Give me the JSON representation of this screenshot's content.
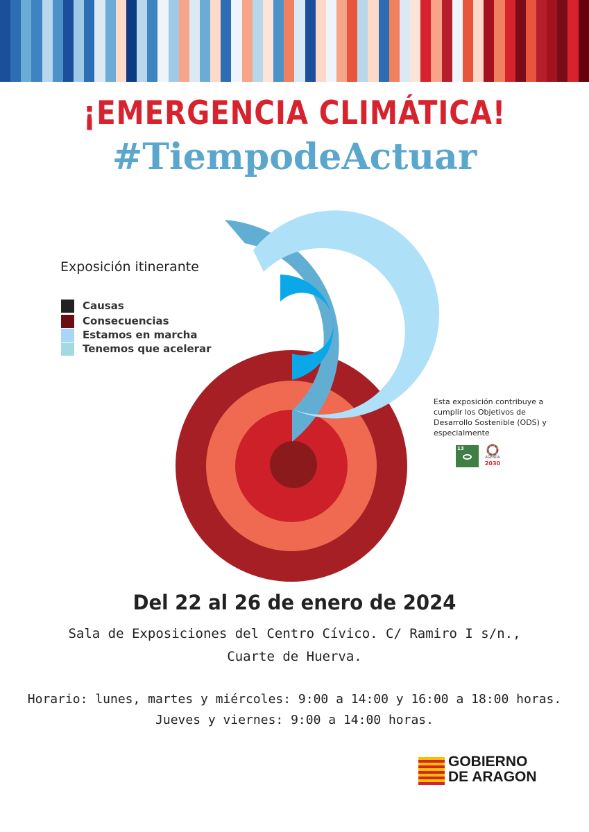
{
  "stripes": [
    "#1b4f9c",
    "#2c6db3",
    "#6aacd6",
    "#3f84c2",
    "#b8d7ec",
    "#4c92c9",
    "#1b4f9c",
    "#9fcae6",
    "#2c6db3",
    "#dbe9f5",
    "#6aacd6",
    "#fcd9c8",
    "#0c3b84",
    "#b8d7ec",
    "#3f84c2",
    "#eef4fa",
    "#9fcae6",
    "#f7a488",
    "#dbe9f5",
    "#6aacd6",
    "#fcd9c8",
    "#2c6db3",
    "#eef4fa",
    "#f7a488",
    "#b8d7ec",
    "#fce4d8",
    "#4c92c9",
    "#f08160",
    "#dbe9f5",
    "#1b4f9c",
    "#fcd9c8",
    "#eef4fa",
    "#f7a488",
    "#e8553c",
    "#b8d7ec",
    "#fcd9c8",
    "#2c6db3",
    "#f08160",
    "#dbe9f5",
    "#fce4d8",
    "#d6232d",
    "#f7a488",
    "#b61e2b",
    "#eef4fa",
    "#e8553c",
    "#fcd9c8",
    "#a3131f",
    "#f08160",
    "#d6232d",
    "#7a0c17",
    "#e8553c",
    "#b61e2b",
    "#a3131f",
    "#7a0c17",
    "#d6232d",
    "#67000d"
  ],
  "title_main": "¡EMERGENCIA CLIMÁTICA!",
  "title_hashtag": "#TiempodeActuar",
  "exhibition": "Exposición itinerante",
  "legend": [
    {
      "label": "Causas",
      "color": "#222222"
    },
    {
      "label": "Consecuencias",
      "color": "#6b0e12"
    },
    {
      "label": "Estamos en marcha",
      "color": "#a9d6f5"
    },
    {
      "label": "Tenemos que acelerar",
      "color": "#a3d9e1"
    }
  ],
  "emblem_colors": {
    "outer_red": "#a51f24",
    "coral": "#ef6a50",
    "red": "#ce2028",
    "center": "#8b1a1d",
    "blue_outer": "#62aed3",
    "blue_light": "#aee0f8",
    "blue_inner": "#0aa8e8"
  },
  "ods_note": "Esta exposición contribuye a cumplir los Objetivos de Desarrollo Sostenible (ODS) y especialmente",
  "ods_goal_number": "13",
  "ods_goal_text": "ACCIÓN POR EL CLIMA",
  "agenda_label": "AGENDA",
  "agenda_year": "2030",
  "date_line": "Del 22 al 26 de enero de 2024",
  "venue_line1": "Sala de Exposiciones del Centro Cívico. C/ Ramiro I s/n.,",
  "venue_line2": "Cuarte de Huerva.",
  "hours_line1": "Horario: lunes, martes y miércoles: 9:00 a 14:00 y 16:00 a 18:00 horas.",
  "hours_line2": "Jueves y viernes: 9:00 a 14:00 horas.",
  "gov_line1": "GOBIERNO",
  "gov_line2": "DE ARAGON"
}
